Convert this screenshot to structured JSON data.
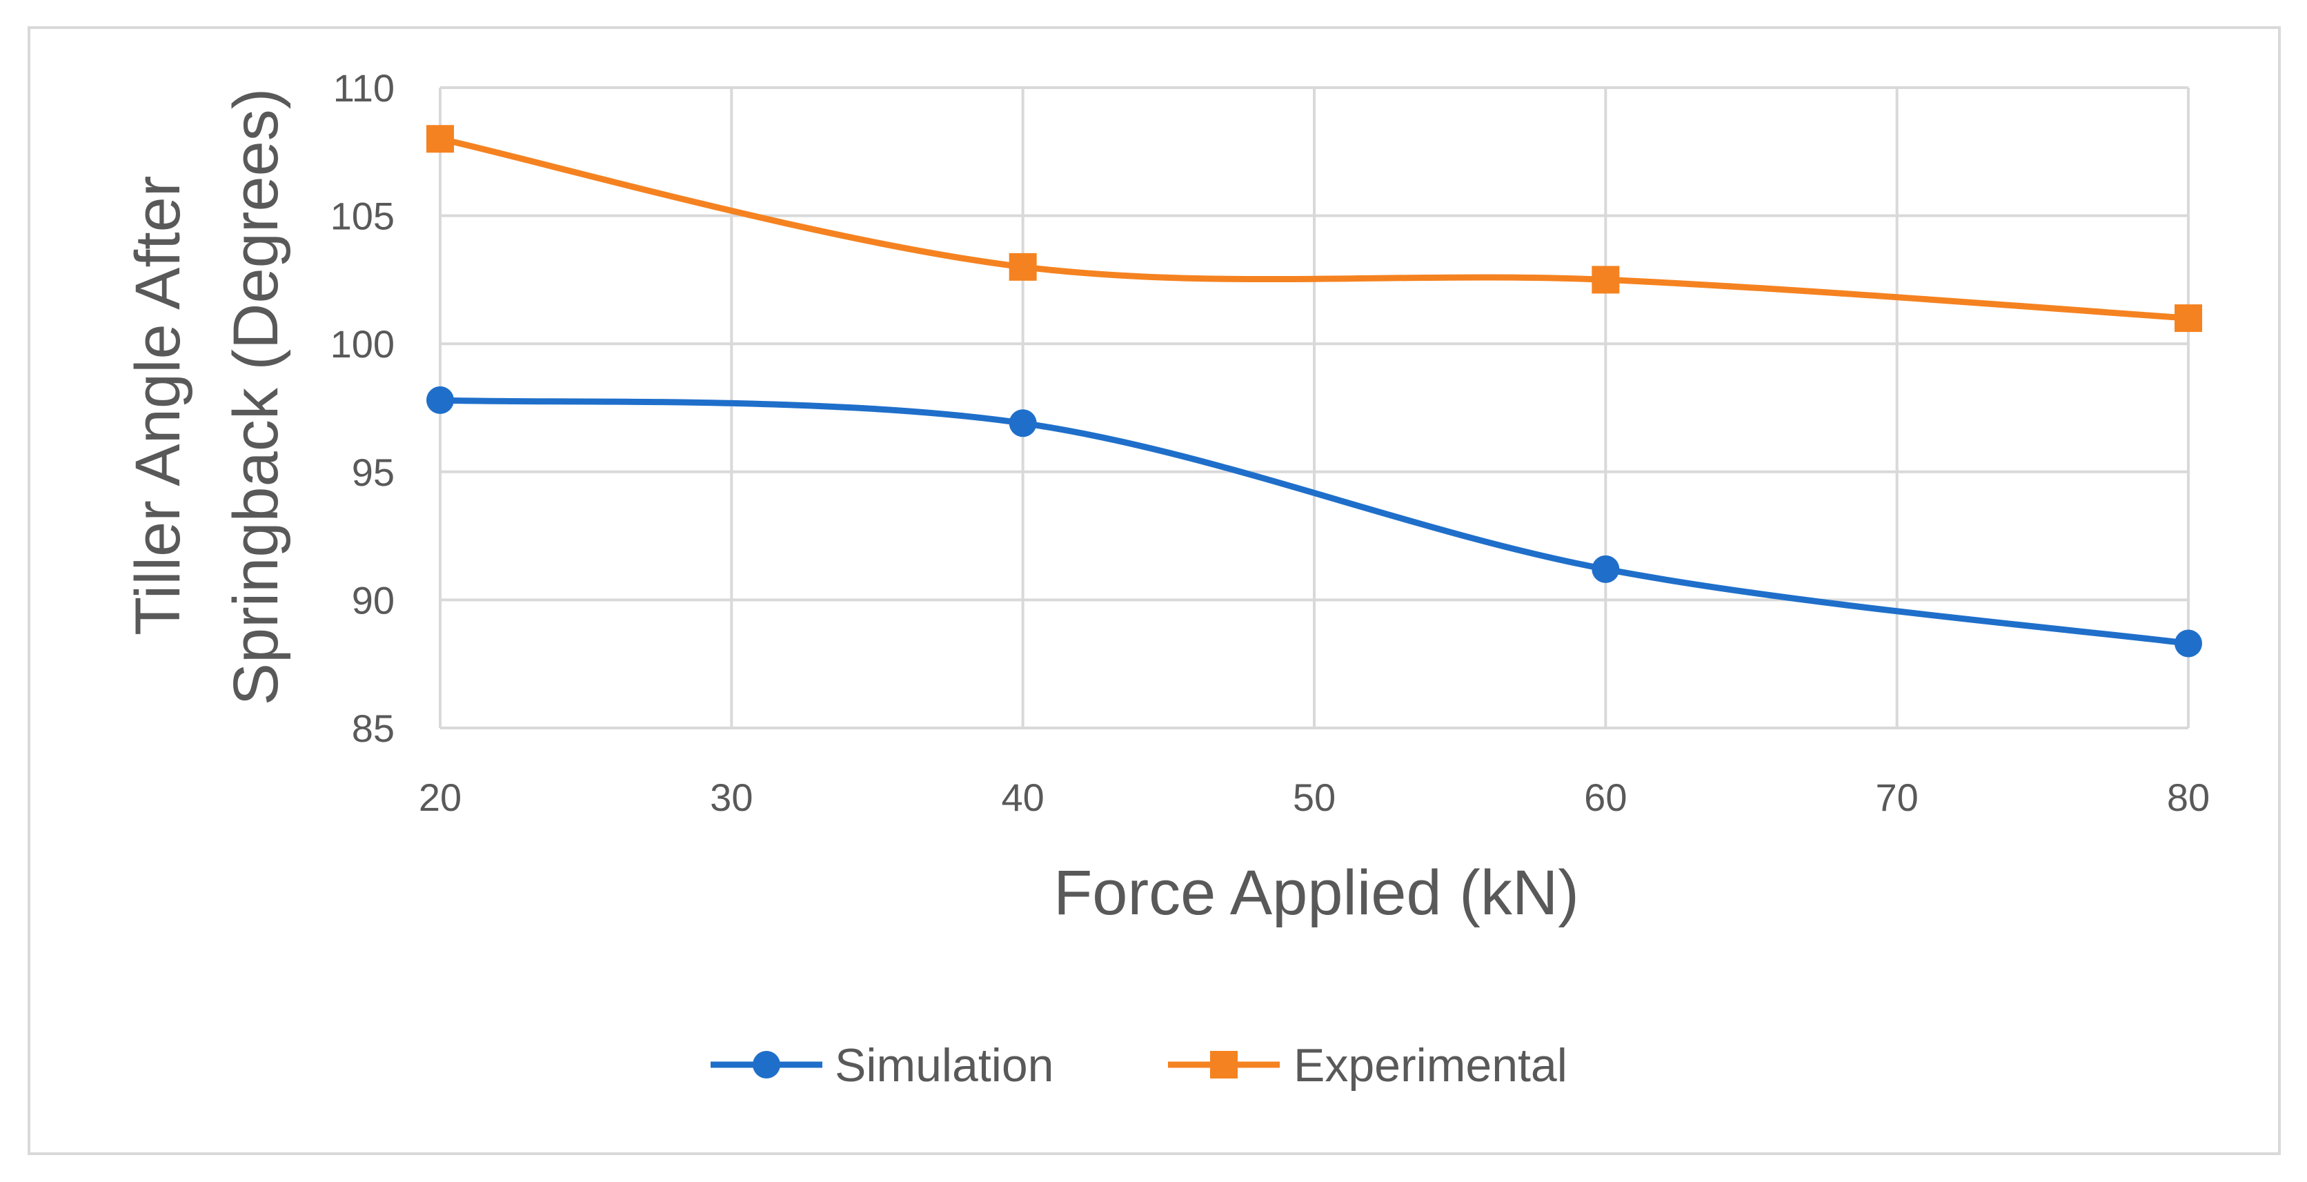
{
  "chart_data": {
    "type": "line",
    "title": "",
    "xlabel": "Force Applied (kN)",
    "ylabel_lines": [
      "Tiller Angle After",
      "Springback (Degrees)"
    ],
    "xlim": [
      20,
      80
    ],
    "ylim": [
      85,
      110
    ],
    "xticks": [
      20,
      30,
      40,
      50,
      60,
      70,
      80
    ],
    "yticks": [
      85,
      90,
      95,
      100,
      105,
      110
    ],
    "grid": true,
    "smooth": true,
    "legend_position": "bottom-center",
    "series": [
      {
        "name": "Simulation",
        "marker": "circle",
        "color": "#1f6fca",
        "x": [
          20,
          40,
          60,
          80
        ],
        "y": [
          97.8,
          96.9,
          91.2,
          88.3
        ]
      },
      {
        "name": "Experimental",
        "marker": "square",
        "color": "#f58220",
        "x": [
          20,
          40,
          60,
          80
        ],
        "y": [
          108.0,
          103.0,
          102.5,
          101.0
        ]
      }
    ]
  }
}
